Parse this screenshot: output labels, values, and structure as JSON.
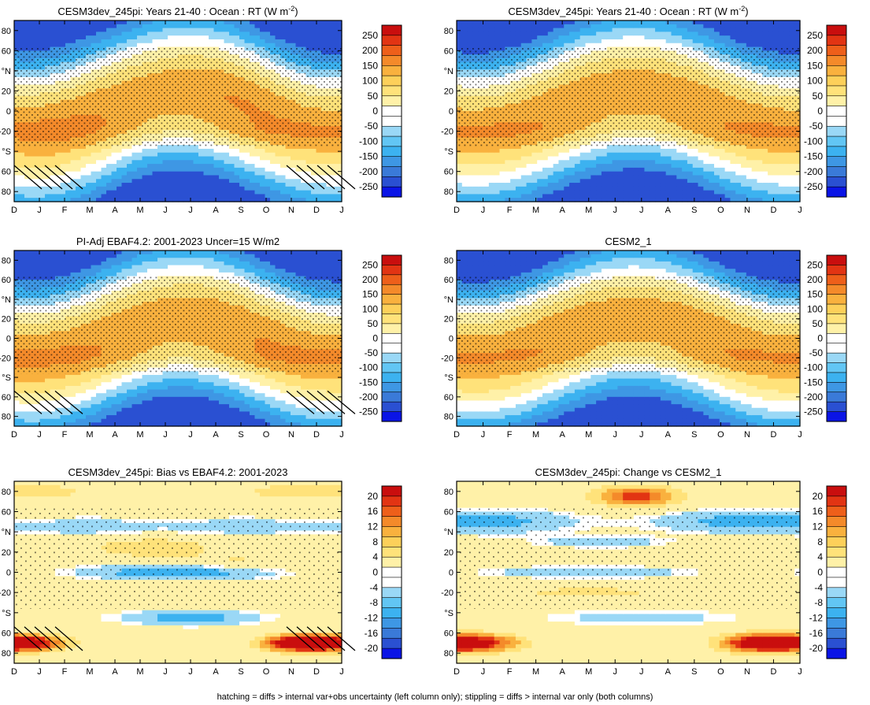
{
  "figure": {
    "footnote": "hatching = diffs > internal var+obs uncertainty (left column only); stippling = diffs > internal var only (both columns)"
  },
  "colors": {
    "full_scale": [
      "#0a14e6",
      "#2a50d2",
      "#3a7ad8",
      "#3e97e4",
      "#3cb2f0",
      "#62c6f4",
      "#9ad8f6",
      "#ffffff",
      "#ffffff",
      "#fff1a8",
      "#ffe27a",
      "#fdd05a",
      "#f9b13e",
      "#f48a2a",
      "#ee5f1a",
      "#e23413",
      "#c90e0e"
    ],
    "diff_scale": [
      "#0a14e6",
      "#2a50d2",
      "#3a7ad8",
      "#3e97e4",
      "#3cb2f0",
      "#62c6f4",
      "#9ad8f6",
      "#ffffff",
      "#ffffff",
      "#fff1a8",
      "#ffe27a",
      "#fdd05a",
      "#f9b13e",
      "#f48a2a",
      "#ee5f1a",
      "#e23413",
      "#c90e0e"
    ]
  },
  "chart_data": [
    {
      "type": "heatmap",
      "title": "CESM3dev_245pi: Years 21-40 : Ocean : RT (W m",
      "title_sup": "-2",
      "title_end": ")",
      "field": "rt_model",
      "x": [
        "D",
        "J",
        "F",
        "M",
        "A",
        "M",
        "J",
        "J",
        "A",
        "S",
        "O",
        "N",
        "D",
        "J"
      ],
      "y": [
        80,
        60,
        40,
        20,
        0,
        -20,
        -40,
        -60,
        -80
      ],
      "y_tick_labels": [
        "80",
        "60",
        "°N",
        "20",
        "0",
        "-20",
        "°S",
        "60",
        "80"
      ],
      "ylim": [
        -90,
        90
      ],
      "colorbar_levels": [
        "250",
        "200",
        "150",
        "100",
        "50",
        "0",
        "-50",
        "-100",
        "-150",
        "-200",
        "-250"
      ],
      "hatching": true,
      "stippling": true
    },
    {
      "type": "heatmap",
      "title": "CESM3dev_245pi: Years 21-40 : Ocean : RT (W m",
      "title_sup": "-2",
      "title_end": ")",
      "field": "rt_model_b",
      "x": [
        "D",
        "J",
        "F",
        "M",
        "A",
        "M",
        "J",
        "J",
        "A",
        "S",
        "O",
        "N",
        "D",
        "J"
      ],
      "y": [
        80,
        60,
        40,
        20,
        0,
        -20,
        -40,
        -60,
        -80
      ],
      "y_tick_labels": [
        "80",
        "60",
        "°N",
        "20",
        "0",
        "-20",
        "°S",
        "60",
        "80"
      ],
      "ylim": [
        -90,
        90
      ],
      "colorbar_levels": [
        "250",
        "200",
        "150",
        "100",
        "50",
        "0",
        "-50",
        "-100",
        "-150",
        "-200",
        "-250"
      ],
      "hatching": false,
      "stippling": true
    },
    {
      "type": "heatmap",
      "title": "PI-Adj EBAF4.2: 2001-2023 Uncer=15 W/m2",
      "title_sup": "",
      "title_end": "",
      "field": "rt_obs",
      "x": [
        "D",
        "J",
        "F",
        "M",
        "A",
        "M",
        "J",
        "J",
        "A",
        "S",
        "O",
        "N",
        "D",
        "J"
      ],
      "y": [
        80,
        60,
        40,
        20,
        0,
        -20,
        -40,
        -60,
        -80
      ],
      "y_tick_labels": [
        "80",
        "60",
        "°N",
        "20",
        "0",
        "-20",
        "°S",
        "60",
        "80"
      ],
      "ylim": [
        -90,
        90
      ],
      "colorbar_levels": [
        "250",
        "200",
        "150",
        "100",
        "50",
        "0",
        "-50",
        "-100",
        "-150",
        "-200",
        "-250"
      ],
      "hatching": true,
      "stippling": true
    },
    {
      "type": "heatmap",
      "title": "CESM2_1",
      "title_sup": "",
      "title_end": "",
      "field": "rt_cesm2",
      "x": [
        "D",
        "J",
        "F",
        "M",
        "A",
        "M",
        "J",
        "J",
        "A",
        "S",
        "O",
        "N",
        "D",
        "J"
      ],
      "y": [
        80,
        60,
        40,
        20,
        0,
        -20,
        -40,
        -60,
        -80
      ],
      "y_tick_labels": [
        "80",
        "60",
        "°N",
        "20",
        "0",
        "-20",
        "°S",
        "60",
        "80"
      ],
      "ylim": [
        -90,
        90
      ],
      "colorbar_levels": [
        "250",
        "200",
        "150",
        "100",
        "50",
        "0",
        "-50",
        "-100",
        "-150",
        "-200",
        "-250"
      ],
      "hatching": false,
      "stippling": true
    },
    {
      "type": "heatmap",
      "title": "CESM3dev_245pi: Bias vs EBAF4.2: 2001-2023",
      "title_sup": "",
      "title_end": "",
      "field": "bias",
      "x": [
        "D",
        "J",
        "F",
        "M",
        "A",
        "M",
        "J",
        "J",
        "A",
        "S",
        "O",
        "N",
        "D",
        "J"
      ],
      "y": [
        80,
        60,
        40,
        20,
        0,
        -20,
        -40,
        -60,
        -80
      ],
      "y_tick_labels": [
        "80",
        "60",
        "°N",
        "20",
        "0",
        "-20",
        "°S",
        "60",
        "80"
      ],
      "ylim": [
        -90,
        90
      ],
      "colorbar_levels": [
        "20",
        "16",
        "12",
        "8",
        "4",
        "0",
        "-4",
        "-8",
        "-12",
        "-16",
        "-20"
      ],
      "hatching": true,
      "stippling": true
    },
    {
      "type": "heatmap",
      "title": "CESM3dev_245pi: Change vs CESM2_1",
      "title_sup": "",
      "title_end": "",
      "field": "change",
      "x": [
        "D",
        "J",
        "F",
        "M",
        "A",
        "M",
        "J",
        "J",
        "A",
        "S",
        "O",
        "N",
        "D",
        "J"
      ],
      "y": [
        80,
        60,
        40,
        20,
        0,
        -20,
        -40,
        -60,
        -80
      ],
      "y_tick_labels": [
        "80",
        "60",
        "°N",
        "20",
        "0",
        "-20",
        "°S",
        "60",
        "80"
      ],
      "ylim": [
        -90,
        90
      ],
      "colorbar_levels": [
        "20",
        "16",
        "12",
        "8",
        "4",
        "0",
        "-4",
        "-8",
        "-12",
        "-16",
        "-20"
      ],
      "hatching": false,
      "stippling": true
    }
  ]
}
